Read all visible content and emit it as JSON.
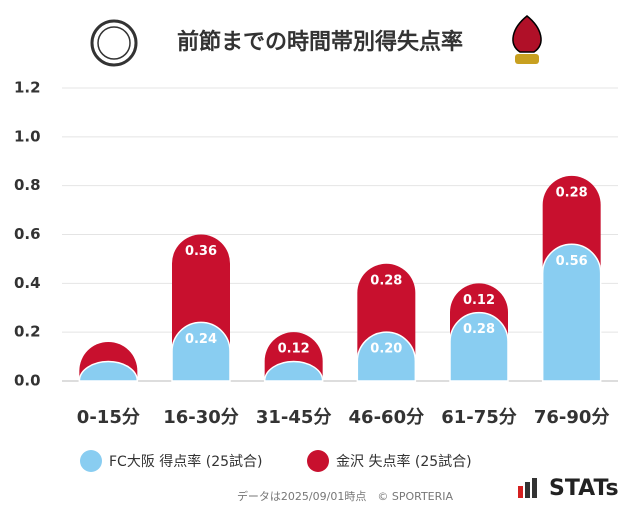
{
  "chart_data": {
    "type": "stacked-bar",
    "title": "前節までの時間帯別得失点率",
    "categories": [
      "0-15分",
      "16-30分",
      "31-45分",
      "46-60分",
      "61-75分",
      "76-90分"
    ],
    "series": [
      {
        "name": "FC大阪 得点率 (25試合)",
        "color": "#89cdf1",
        "values": [
          0.08,
          0.24,
          0.08,
          0.2,
          0.28,
          0.56
        ],
        "value_labels": [
          null,
          "0.24",
          null,
          "0.20",
          "0.28",
          "0.56"
        ]
      },
      {
        "name": "金沢 失点率 (25試合)",
        "color": "#c8102e",
        "values": [
          0.08,
          0.36,
          0.12,
          0.28,
          0.12,
          0.28
        ],
        "value_labels": [
          null,
          "0.36",
          "0.12",
          "0.28",
          "0.12",
          "0.28"
        ]
      }
    ],
    "ylim": [
      0,
      1.2
    ],
    "yticks": [
      {
        "value": 0,
        "label": "0.0"
      },
      0.2,
      0.4,
      0.6,
      0.8,
      {
        "value": 1,
        "label": "1.0"
      },
      1.2
    ],
    "grid": true,
    "legend": "bottom"
  },
  "footnote": "データは2025/09/01時点　© SPORTERIA",
  "brand": "STATs"
}
